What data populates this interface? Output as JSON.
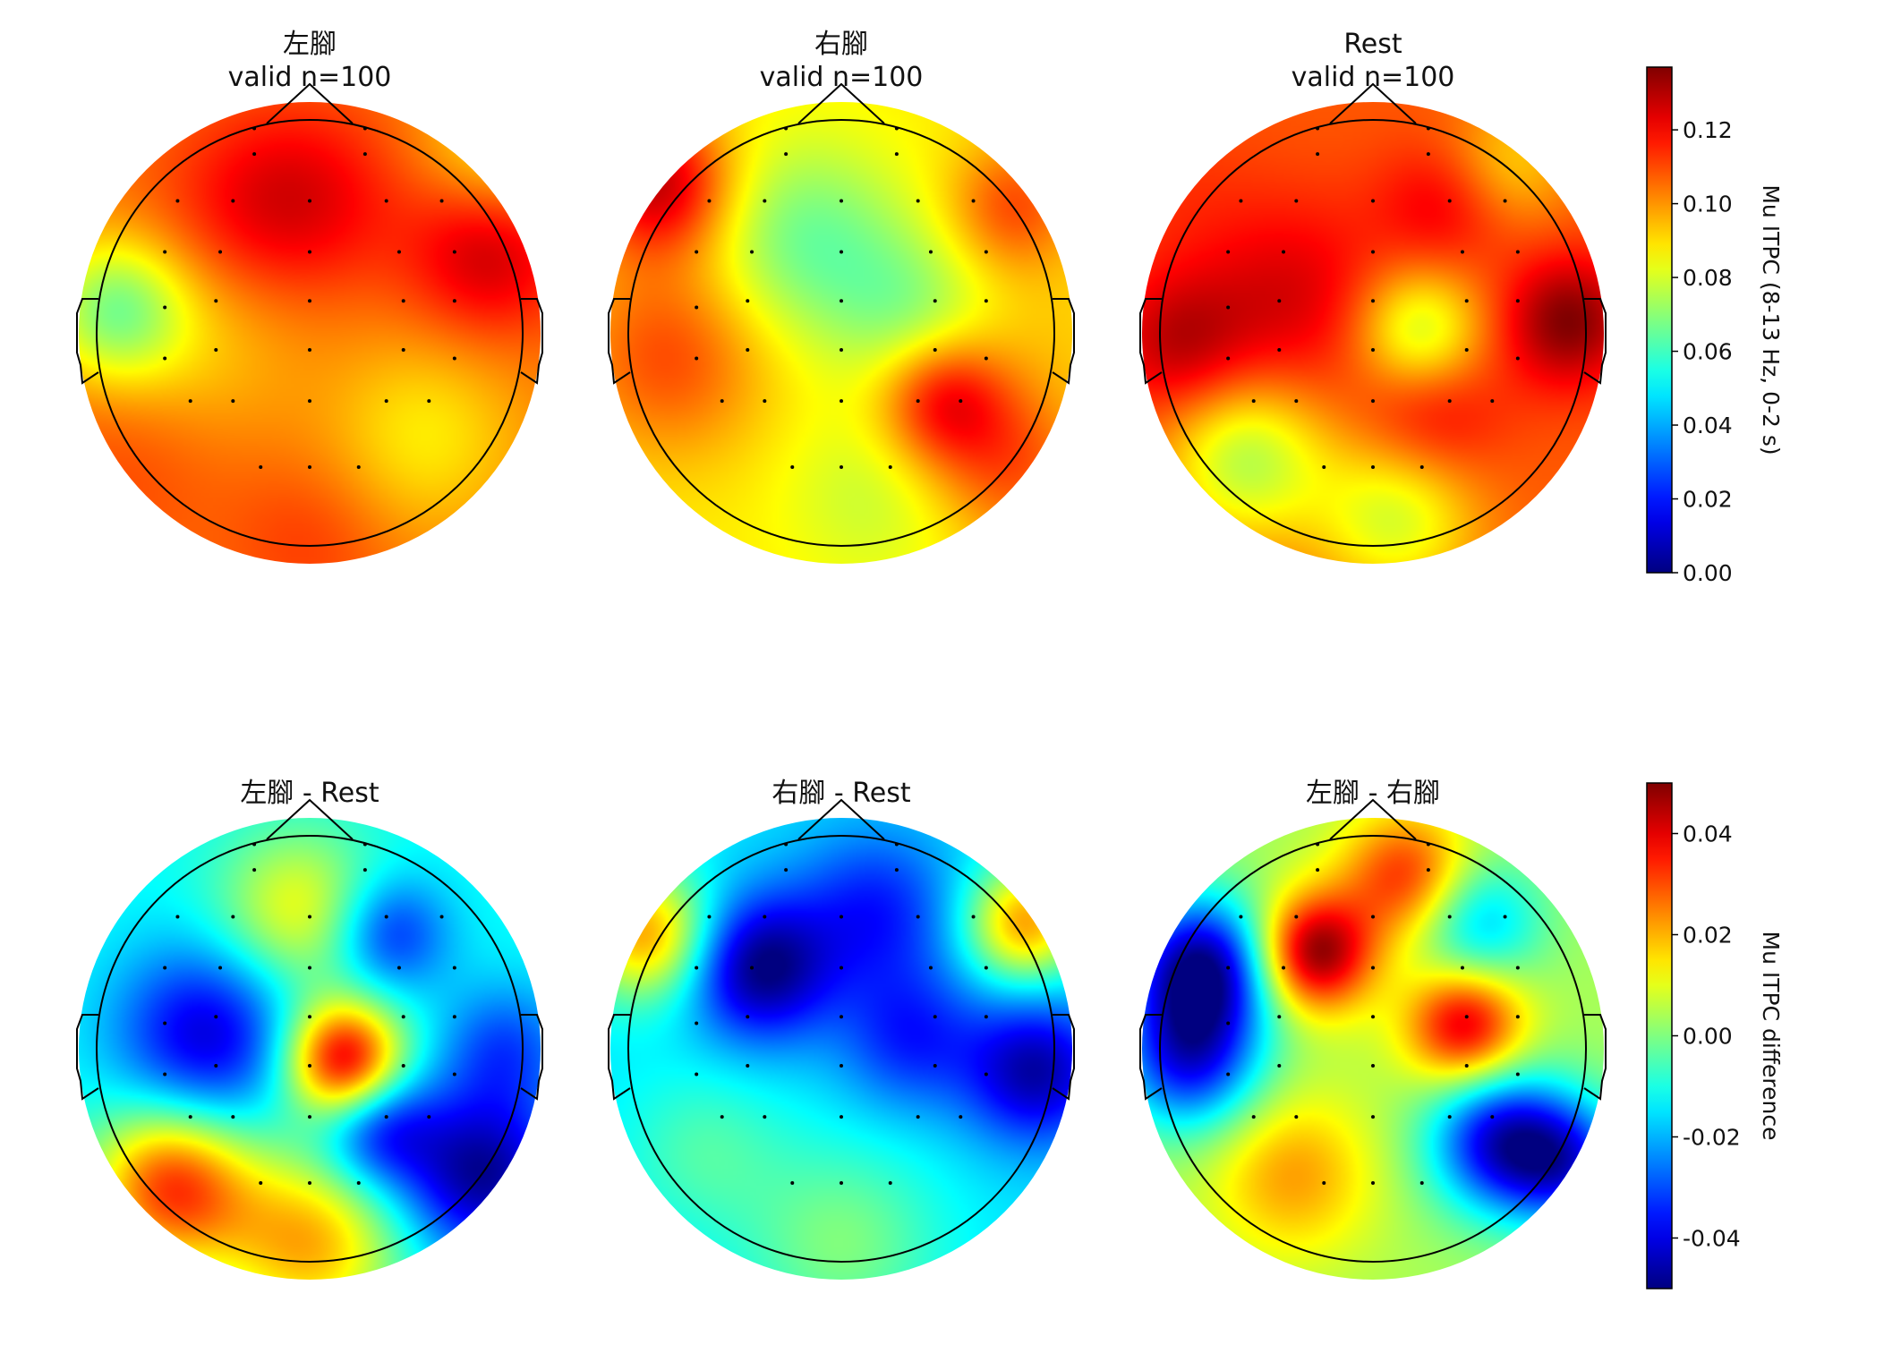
{
  "chart_data": [
    {
      "type": "heatmap",
      "subtype": "topomap",
      "colormap": "jet",
      "title_lines": [
        "左腳",
        "valid n=100"
      ],
      "vmin": 0.0,
      "vmax": 0.137,
      "blobs": [
        {
          "x": 0.0,
          "y": 0.0,
          "value": 0.104,
          "sigma": 0.9
        },
        {
          "x": -0.25,
          "y": 0.55,
          "value": 0.118,
          "sigma": 0.3
        },
        {
          "x": 0.05,
          "y": 0.6,
          "value": 0.116,
          "sigma": 0.28
        },
        {
          "x": 0.78,
          "y": 0.35,
          "value": 0.128,
          "sigma": 0.25
        },
        {
          "x": -0.85,
          "y": 0.1,
          "value": 0.07,
          "sigma": 0.22
        },
        {
          "x": -0.45,
          "y": -0.05,
          "value": 0.094,
          "sigma": 0.3
        },
        {
          "x": 0.5,
          "y": -0.45,
          "value": 0.088,
          "sigma": 0.3
        },
        {
          "x": 0.0,
          "y": -0.9,
          "value": 0.112,
          "sigma": 0.25
        },
        {
          "x": -0.8,
          "y": -0.6,
          "value": 0.11,
          "sigma": 0.3
        },
        {
          "x": 0.85,
          "y": 0.8,
          "value": 0.085,
          "sigma": 0.25
        }
      ]
    },
    {
      "type": "heatmap",
      "subtype": "topomap",
      "colormap": "jet",
      "title_lines": [
        "右腳",
        "valid n=100"
      ],
      "vmin": 0.0,
      "vmax": 0.137,
      "blobs": [
        {
          "x": 0.0,
          "y": 0.0,
          "value": 0.088,
          "sigma": 0.9
        },
        {
          "x": -0.8,
          "y": 0.65,
          "value": 0.128,
          "sigma": 0.22
        },
        {
          "x": -0.15,
          "y": 0.4,
          "value": 0.066,
          "sigma": 0.3
        },
        {
          "x": 0.3,
          "y": 0.1,
          "value": 0.072,
          "sigma": 0.25
        },
        {
          "x": 0.45,
          "y": -0.3,
          "value": 0.121,
          "sigma": 0.2
        },
        {
          "x": 0.75,
          "y": 0.55,
          "value": 0.11,
          "sigma": 0.2
        },
        {
          "x": -0.75,
          "y": -0.1,
          "value": 0.11,
          "sigma": 0.3
        },
        {
          "x": 0.15,
          "y": -0.7,
          "value": 0.078,
          "sigma": 0.28
        },
        {
          "x": 0.75,
          "y": -0.6,
          "value": 0.108,
          "sigma": 0.25
        },
        {
          "x": 0.9,
          "y": 0.0,
          "value": 0.092,
          "sigma": 0.25
        }
      ]
    },
    {
      "type": "heatmap",
      "subtype": "topomap",
      "colormap": "jet",
      "title_lines": [
        "Rest",
        "valid n=100"
      ],
      "vmin": 0.0,
      "vmax": 0.137,
      "blobs": [
        {
          "x": 0.0,
          "y": 0.0,
          "value": 0.108,
          "sigma": 0.9
        },
        {
          "x": -0.35,
          "y": 0.15,
          "value": 0.125,
          "sigma": 0.3
        },
        {
          "x": 0.2,
          "y": 0.0,
          "value": 0.076,
          "sigma": 0.2
        },
        {
          "x": 0.85,
          "y": 0.05,
          "value": 0.137,
          "sigma": 0.2
        },
        {
          "x": -0.85,
          "y": -0.05,
          "value": 0.128,
          "sigma": 0.22
        },
        {
          "x": 0.3,
          "y": 0.55,
          "value": 0.122,
          "sigma": 0.2
        },
        {
          "x": 0.25,
          "y": -0.35,
          "value": 0.124,
          "sigma": 0.22
        },
        {
          "x": -0.55,
          "y": -0.55,
          "value": 0.076,
          "sigma": 0.25
        },
        {
          "x": 0.1,
          "y": -0.8,
          "value": 0.08,
          "sigma": 0.25
        },
        {
          "x": 0.6,
          "y": 0.75,
          "value": 0.092,
          "sigma": 0.2
        },
        {
          "x": -0.85,
          "y": 0.6,
          "value": 0.112,
          "sigma": 0.25
        }
      ]
    },
    {
      "type": "heatmap",
      "subtype": "topomap",
      "colormap": "jet",
      "title_lines": [
        "左腳 - Rest"
      ],
      "vmin": -0.05,
      "vmax": 0.05,
      "blobs": [
        {
          "x": 0.0,
          "y": 0.0,
          "value": -0.012,
          "sigma": 0.9
        },
        {
          "x": -0.45,
          "y": 0.05,
          "value": -0.042,
          "sigma": 0.28
        },
        {
          "x": 0.15,
          "y": -0.05,
          "value": 0.042,
          "sigma": 0.18
        },
        {
          "x": 0.35,
          "y": 0.5,
          "value": -0.035,
          "sigma": 0.18
        },
        {
          "x": 0.75,
          "y": -0.55,
          "value": -0.048,
          "sigma": 0.25
        },
        {
          "x": 0.3,
          "y": -0.35,
          "value": -0.038,
          "sigma": 0.18
        },
        {
          "x": -0.6,
          "y": -0.6,
          "value": 0.032,
          "sigma": 0.25
        },
        {
          "x": 0.0,
          "y": -0.85,
          "value": 0.02,
          "sigma": 0.28
        },
        {
          "x": -0.05,
          "y": 0.6,
          "value": 0.012,
          "sigma": 0.25
        },
        {
          "x": 0.85,
          "y": 0.0,
          "value": -0.03,
          "sigma": 0.2
        }
      ]
    },
    {
      "type": "heatmap",
      "subtype": "topomap",
      "colormap": "jet",
      "title_lines": [
        "右腳 - Rest"
      ],
      "vmin": -0.05,
      "vmax": 0.05,
      "blobs": [
        {
          "x": 0.0,
          "y": 0.0,
          "value": -0.015,
          "sigma": 0.9
        },
        {
          "x": -0.35,
          "y": 0.35,
          "value": -0.05,
          "sigma": 0.22
        },
        {
          "x": 0.15,
          "y": 0.6,
          "value": -0.035,
          "sigma": 0.25
        },
        {
          "x": 0.85,
          "y": -0.1,
          "value": -0.046,
          "sigma": 0.22
        },
        {
          "x": 0.3,
          "y": 0.05,
          "value": -0.034,
          "sigma": 0.22
        },
        {
          "x": -0.85,
          "y": 0.5,
          "value": 0.022,
          "sigma": 0.2
        },
        {
          "x": 0.8,
          "y": 0.55,
          "value": 0.022,
          "sigma": 0.18
        },
        {
          "x": 0.0,
          "y": -0.85,
          "value": 0.0,
          "sigma": 0.3
        },
        {
          "x": -0.6,
          "y": -0.45,
          "value": -0.005,
          "sigma": 0.25
        }
      ]
    },
    {
      "type": "heatmap",
      "subtype": "topomap",
      "colormap": "jet",
      "title_lines": [
        "左腳 - 右腳"
      ],
      "vmin": -0.05,
      "vmax": 0.05,
      "blobs": [
        {
          "x": 0.0,
          "y": 0.0,
          "value": 0.004,
          "sigma": 0.9
        },
        {
          "x": -0.25,
          "y": 0.42,
          "value": 0.05,
          "sigma": 0.18
        },
        {
          "x": 0.15,
          "y": 0.75,
          "value": 0.034,
          "sigma": 0.2
        },
        {
          "x": 0.4,
          "y": 0.1,
          "value": 0.042,
          "sigma": 0.18
        },
        {
          "x": -0.75,
          "y": 0.35,
          "value": -0.048,
          "sigma": 0.22
        },
        {
          "x": -0.8,
          "y": -0.05,
          "value": -0.035,
          "sigma": 0.22
        },
        {
          "x": 0.55,
          "y": -0.4,
          "value": -0.038,
          "sigma": 0.22
        },
        {
          "x": 0.45,
          "y": 0.55,
          "value": -0.02,
          "sigma": 0.2
        },
        {
          "x": -0.35,
          "y": -0.55,
          "value": 0.022,
          "sigma": 0.25
        },
        {
          "x": 0.85,
          "y": -0.5,
          "value": -0.03,
          "sigma": 0.2
        }
      ]
    }
  ],
  "colorbars": [
    {
      "label": "Mu ITPC (8-13 Hz, 0-2 s)",
      "vmin": 0.0,
      "vmax": 0.137,
      "ticks": [
        {
          "value": 0.0,
          "text": "0.00"
        },
        {
          "value": 0.02,
          "text": "0.02"
        },
        {
          "value": 0.04,
          "text": "0.04"
        },
        {
          "value": 0.06,
          "text": "0.06"
        },
        {
          "value": 0.08,
          "text": "0.08"
        },
        {
          "value": 0.1,
          "text": "0.10"
        },
        {
          "value": 0.12,
          "text": "0.12"
        }
      ]
    },
    {
      "label": "Mu ITPC difference",
      "vmin": -0.05,
      "vmax": 0.05,
      "ticks": [
        {
          "value": -0.04,
          "text": "-0.04"
        },
        {
          "value": -0.02,
          "text": "-0.02"
        },
        {
          "value": 0.0,
          "text": "0.00"
        },
        {
          "value": 0.02,
          "text": "0.02"
        },
        {
          "value": 0.04,
          "text": "0.04"
        }
      ]
    }
  ],
  "sensors": [
    [
      -0.26,
      0.96
    ],
    [
      0.26,
      0.96
    ],
    [
      -0.26,
      0.84
    ],
    [
      0.26,
      0.84
    ],
    [
      -0.62,
      0.62
    ],
    [
      -0.36,
      0.62
    ],
    [
      0.0,
      0.62
    ],
    [
      0.36,
      0.62
    ],
    [
      0.62,
      0.62
    ],
    [
      -0.68,
      0.38
    ],
    [
      -0.42,
      0.38
    ],
    [
      0.0,
      0.38
    ],
    [
      0.42,
      0.38
    ],
    [
      0.68,
      0.38
    ],
    [
      -0.68,
      0.12
    ],
    [
      -0.44,
      0.15
    ],
    [
      0.0,
      0.15
    ],
    [
      0.44,
      0.15
    ],
    [
      0.68,
      0.15
    ],
    [
      -0.68,
      -0.12
    ],
    [
      -0.44,
      -0.08
    ],
    [
      0.0,
      -0.08
    ],
    [
      0.44,
      -0.08
    ],
    [
      0.68,
      -0.12
    ],
    [
      -0.56,
      -0.32
    ],
    [
      -0.36,
      -0.32
    ],
    [
      0.0,
      -0.32
    ],
    [
      0.36,
      -0.32
    ],
    [
      0.56,
      -0.32
    ],
    [
      -0.23,
      -0.63
    ],
    [
      0.0,
      -0.63
    ],
    [
      0.23,
      -0.63
    ]
  ]
}
